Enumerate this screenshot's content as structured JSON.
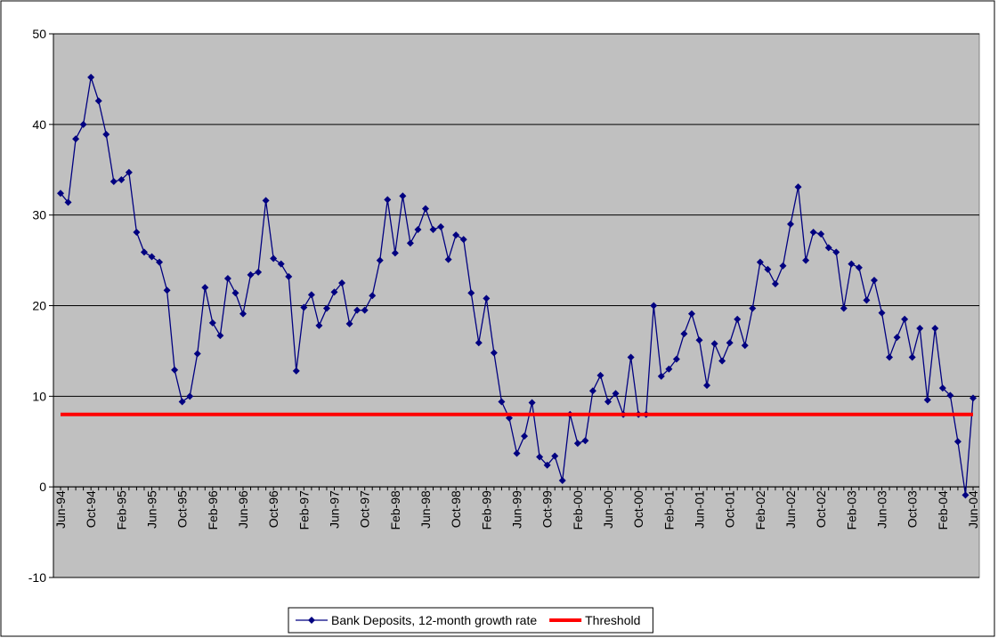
{
  "chart_data": {
    "type": "line",
    "categories": [
      "Jun-94",
      null,
      null,
      null,
      "Oct-94",
      null,
      null,
      null,
      "Feb-95",
      null,
      null,
      null,
      "Jun-95",
      null,
      null,
      null,
      "Oct-95",
      null,
      null,
      null,
      "Feb-96",
      null,
      null,
      null,
      "Jun-96",
      null,
      null,
      null,
      "Oct-96",
      null,
      null,
      null,
      "Feb-97",
      null,
      null,
      null,
      "Jun-97",
      null,
      null,
      null,
      "Oct-97",
      null,
      null,
      null,
      "Feb-98",
      null,
      null,
      null,
      "Jun-98",
      null,
      null,
      null,
      "Oct-98",
      null,
      null,
      null,
      "Feb-99",
      null,
      null,
      null,
      "Jun-99",
      null,
      null,
      null,
      "Oct-99",
      null,
      null,
      null,
      "Feb-00",
      null,
      null,
      null,
      "Jun-00",
      null,
      null,
      null,
      "Oct-00",
      null,
      null,
      null,
      "Feb-01",
      null,
      null,
      null,
      "Jun-01",
      null,
      null,
      null,
      "Oct-01",
      null,
      null,
      null,
      "Feb-02",
      null,
      null,
      null,
      "Jun-02",
      null,
      null,
      null,
      "Oct-02",
      null,
      null,
      null,
      "Feb-03",
      null,
      null,
      null,
      "Jun-03",
      null,
      null,
      null,
      "Oct-03",
      null,
      null,
      null,
      "Feb-04",
      null,
      null,
      null,
      "Jun-04"
    ],
    "series": [
      {
        "name": "Bank Deposits, 12-month growth rate",
        "color": "#000080",
        "marker": "diamond",
        "values": [
          32.4,
          31.4,
          38.4,
          40.0,
          45.2,
          42.6,
          38.9,
          33.7,
          33.9,
          34.7,
          28.1,
          25.9,
          25.4,
          24.8,
          21.7,
          12.9,
          9.4,
          10.0,
          14.7,
          22.0,
          18.1,
          16.7,
          23.0,
          21.4,
          19.1,
          23.4,
          23.7,
          31.6,
          25.2,
          24.6,
          23.2,
          12.8,
          19.8,
          21.2,
          17.8,
          19.7,
          21.5,
          22.5,
          18.0,
          19.5,
          19.5,
          21.1,
          25.0,
          31.7,
          25.8,
          32.1,
          26.9,
          28.4,
          30.7,
          28.4,
          28.7,
          25.1,
          27.8,
          27.3,
          21.4,
          15.9,
          20.8,
          14.8,
          9.4,
          7.6,
          3.7,
          5.6,
          9.3,
          3.3,
          2.4,
          3.4,
          0.7,
          8.0,
          4.8,
          5.1,
          10.6,
          12.3,
          9.4,
          10.3,
          8.0,
          14.3,
          8.0,
          8.0,
          20.0,
          12.2,
          13.0,
          14.1,
          16.9,
          19.1,
          16.2,
          11.2,
          15.8,
          13.9,
          15.9,
          18.5,
          15.6,
          19.7,
          24.8,
          24.0,
          22.4,
          24.4,
          29.0,
          33.1,
          25.0,
          28.1,
          27.9,
          26.4,
          25.9,
          19.7,
          24.6,
          24.2,
          20.6,
          22.8,
          19.2,
          14.3,
          16.5,
          18.5,
          14.3,
          17.5,
          9.6,
          17.5,
          10.9,
          10.1,
          5.0,
          -0.9,
          9.8
        ]
      },
      {
        "name": "Threshold",
        "color": "#ff0000",
        "marker": "none",
        "values": [
          8,
          8,
          8,
          8,
          8,
          8,
          8,
          8,
          8,
          8,
          8,
          8,
          8,
          8,
          8,
          8,
          8,
          8,
          8,
          8,
          8,
          8,
          8,
          8,
          8,
          8,
          8,
          8,
          8,
          8,
          8,
          8,
          8,
          8,
          8,
          8,
          8,
          8,
          8,
          8,
          8,
          8,
          8,
          8,
          8,
          8,
          8,
          8,
          8,
          8,
          8,
          8,
          8,
          8,
          8,
          8,
          8,
          8,
          8,
          8,
          8,
          8,
          8,
          8,
          8,
          8,
          8,
          8,
          8,
          8,
          8,
          8,
          8,
          8,
          8,
          8,
          8,
          8,
          8,
          8,
          8,
          8,
          8,
          8,
          8,
          8,
          8,
          8,
          8,
          8,
          8,
          8,
          8,
          8,
          8,
          8,
          8,
          8,
          8,
          8,
          8,
          8,
          8,
          8,
          8,
          8,
          8,
          8,
          8,
          8,
          8,
          8,
          8,
          8,
          8,
          8,
          8,
          8,
          8,
          8,
          8
        ]
      }
    ],
    "ylim": [
      -10,
      50
    ],
    "yticks": [
      -10,
      0,
      10,
      20,
      30,
      40,
      50
    ],
    "grid": true,
    "legend": "bottom",
    "plot_background": "#c0c0c0"
  }
}
